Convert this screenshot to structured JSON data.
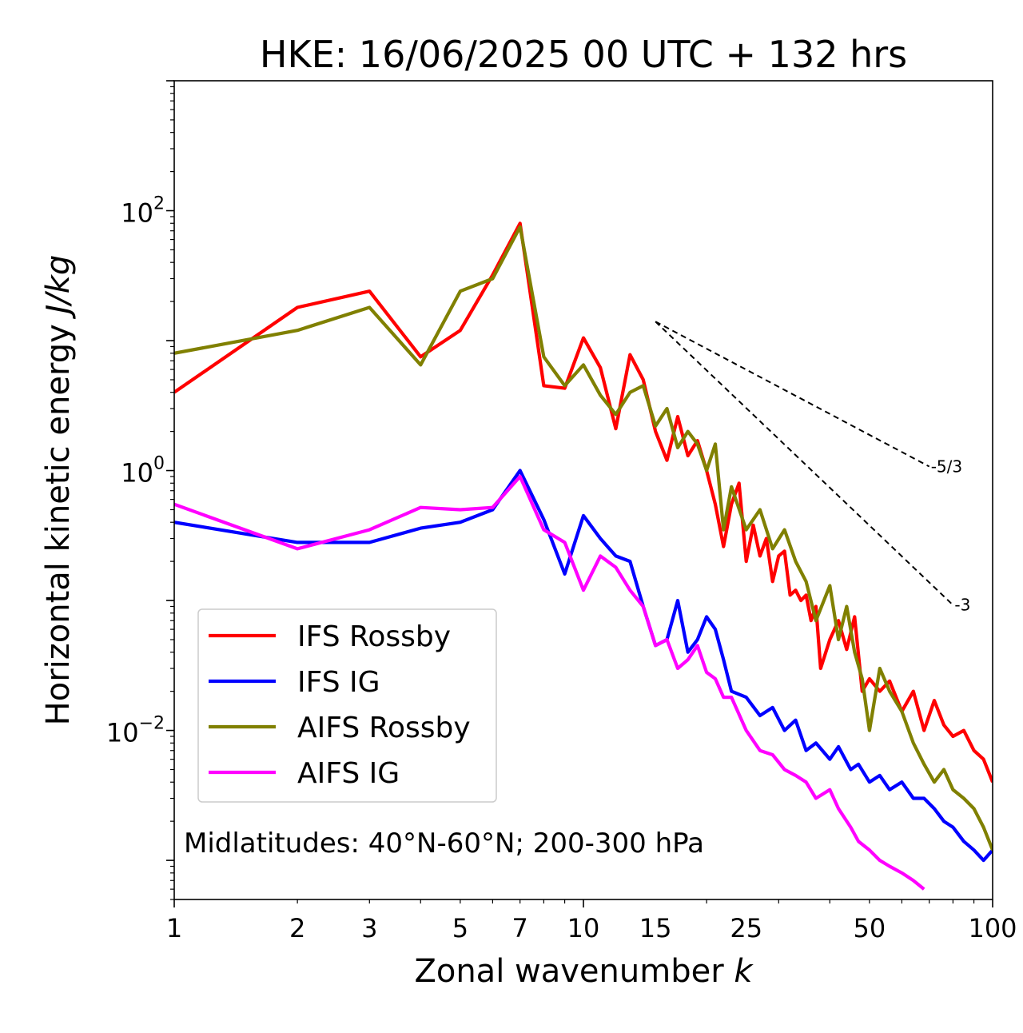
{
  "chart_data": {
    "type": "line",
    "title": "HKE: 16/06/2025 00 UTC + 132 hrs",
    "xlabel": "Zonal wavenumber",
    "xlabel_italic": "k",
    "ylabel": "Horizontal kinetic energy",
    "ylabel_italic": "J/kg",
    "xscale": "log",
    "yscale": "log",
    "xlim": [
      1,
      100
    ],
    "ylim": [
      0.0005,
      1000
    ],
    "x_ticks": [
      {
        "value": 1,
        "label": "1"
      },
      {
        "value": 2,
        "label": "2"
      },
      {
        "value": 3,
        "label": "3"
      },
      {
        "value": 5,
        "label": "5"
      },
      {
        "value": 7,
        "label": "7"
      },
      {
        "value": 10,
        "label": "10"
      },
      {
        "value": 15,
        "label": "15"
      },
      {
        "value": 25,
        "label": "25"
      },
      {
        "value": 50,
        "label": "50"
      },
      {
        "value": 100,
        "label": "100"
      }
    ],
    "y_ticks": [
      {
        "value": 100,
        "base": "10",
        "exp": "2"
      },
      {
        "value": 1,
        "base": "10",
        "exp": "0"
      },
      {
        "value": 0.01,
        "base": "10",
        "exp": "−2"
      }
    ],
    "grid": false,
    "legend": "lower-left",
    "annotation": "Midlatitudes: 40°N-60°N; 200-300 hPa",
    "reference_lines": [
      {
        "label": "-5/3",
        "slope": -1.6667,
        "x": [
          15,
          70
        ],
        "y_start": 14
      },
      {
        "label": "-3",
        "slope": -3,
        "x": [
          15,
          80
        ],
        "y_start": 14
      }
    ],
    "series": [
      {
        "name": "IFS Rossby",
        "color": "#ff0000",
        "points": [
          [
            1,
            4.0
          ],
          [
            2,
            18
          ],
          [
            3,
            24
          ],
          [
            4,
            7.5
          ],
          [
            5,
            12
          ],
          [
            6,
            32
          ],
          [
            7,
            80
          ],
          [
            8,
            4.5
          ],
          [
            9,
            4.3
          ],
          [
            10,
            10.5
          ],
          [
            11,
            6.2
          ],
          [
            12,
            2.1
          ],
          [
            13,
            7.8
          ],
          [
            14,
            5.0
          ],
          [
            15,
            2.0
          ],
          [
            16,
            1.2
          ],
          [
            17,
            2.6
          ],
          [
            18,
            1.3
          ],
          [
            19,
            1.7
          ],
          [
            20,
            1.0
          ],
          [
            21,
            0.55
          ],
          [
            22,
            0.26
          ],
          [
            23,
            0.55
          ],
          [
            24,
            0.8
          ],
          [
            25,
            0.2
          ],
          [
            26,
            0.38
          ],
          [
            27,
            0.22
          ],
          [
            28,
            0.3
          ],
          [
            29,
            0.14
          ],
          [
            30,
            0.22
          ],
          [
            31,
            0.24
          ],
          [
            32,
            0.11
          ],
          [
            33,
            0.12
          ],
          [
            34,
            0.1
          ],
          [
            35,
            0.11
          ],
          [
            36,
            0.07
          ],
          [
            37,
            0.09
          ],
          [
            38,
            0.03
          ],
          [
            40,
            0.05
          ],
          [
            42,
            0.07
          ],
          [
            44,
            0.042
          ],
          [
            46,
            0.075
          ],
          [
            48,
            0.02
          ],
          [
            50,
            0.025
          ],
          [
            53,
            0.02
          ],
          [
            56,
            0.024
          ],
          [
            60,
            0.014
          ],
          [
            64,
            0.02
          ],
          [
            68,
            0.01
          ],
          [
            72,
            0.017
          ],
          [
            76,
            0.011
          ],
          [
            80,
            0.009
          ],
          [
            85,
            0.01
          ],
          [
            90,
            0.007
          ],
          [
            95,
            0.006
          ],
          [
            100,
            0.004
          ]
        ]
      },
      {
        "name": "IFS IG",
        "color": "#0000ff",
        "points": [
          [
            1,
            0.4
          ],
          [
            2,
            0.28
          ],
          [
            3,
            0.28
          ],
          [
            4,
            0.36
          ],
          [
            5,
            0.4
          ],
          [
            6,
            0.5
          ],
          [
            7,
            1.0
          ],
          [
            8,
            0.42
          ],
          [
            9,
            0.16
          ],
          [
            10,
            0.45
          ],
          [
            11,
            0.3
          ],
          [
            12,
            0.22
          ],
          [
            13,
            0.2
          ],
          [
            14,
            0.09
          ],
          [
            15,
            0.045
          ],
          [
            16,
            0.05
          ],
          [
            17,
            0.1
          ],
          [
            18,
            0.04
          ],
          [
            19,
            0.05
          ],
          [
            20,
            0.075
          ],
          [
            21,
            0.06
          ],
          [
            22,
            0.035
          ],
          [
            23,
            0.02
          ],
          [
            25,
            0.018
          ],
          [
            27,
            0.013
          ],
          [
            29,
            0.015
          ],
          [
            31,
            0.01
          ],
          [
            33,
            0.012
          ],
          [
            35,
            0.007
          ],
          [
            37,
            0.008
          ],
          [
            40,
            0.006
          ],
          [
            42,
            0.0075
          ],
          [
            45,
            0.005
          ],
          [
            47,
            0.0055
          ],
          [
            50,
            0.004
          ],
          [
            53,
            0.0045
          ],
          [
            56,
            0.0035
          ],
          [
            60,
            0.004
          ],
          [
            64,
            0.003
          ],
          [
            68,
            0.003
          ],
          [
            72,
            0.0025
          ],
          [
            76,
            0.002
          ],
          [
            80,
            0.0018
          ],
          [
            85,
            0.0014
          ],
          [
            90,
            0.0012
          ],
          [
            95,
            0.001
          ],
          [
            100,
            0.0012
          ]
        ]
      },
      {
        "name": "AIFS Rossby",
        "color": "#808000",
        "points": [
          [
            1,
            8.0
          ],
          [
            2,
            12
          ],
          [
            3,
            18
          ],
          [
            4,
            6.5
          ],
          [
            5,
            24
          ],
          [
            6,
            30
          ],
          [
            7,
            75
          ],
          [
            8,
            7.5
          ],
          [
            9,
            4.5
          ],
          [
            10,
            6.5
          ],
          [
            11,
            3.8
          ],
          [
            12,
            2.7
          ],
          [
            13,
            4.0
          ],
          [
            14,
            4.5
          ],
          [
            15,
            2.2
          ],
          [
            16,
            3.0
          ],
          [
            17,
            1.5
          ],
          [
            18,
            2.0
          ],
          [
            19,
            1.6
          ],
          [
            20,
            1.0
          ],
          [
            21,
            1.6
          ],
          [
            22,
            0.35
          ],
          [
            23,
            0.75
          ],
          [
            25,
            0.35
          ],
          [
            27,
            0.5
          ],
          [
            29,
            0.25
          ],
          [
            31,
            0.35
          ],
          [
            33,
            0.2
          ],
          [
            35,
            0.14
          ],
          [
            37,
            0.07
          ],
          [
            40,
            0.13
          ],
          [
            42,
            0.05
          ],
          [
            44,
            0.09
          ],
          [
            46,
            0.04
          ],
          [
            48,
            0.025
          ],
          [
            50,
            0.01
          ],
          [
            53,
            0.03
          ],
          [
            56,
            0.02
          ],
          [
            60,
            0.014
          ],
          [
            64,
            0.008
          ],
          [
            68,
            0.0055
          ],
          [
            72,
            0.004
          ],
          [
            76,
            0.005
          ],
          [
            80,
            0.0035
          ],
          [
            85,
            0.003
          ],
          [
            90,
            0.0025
          ],
          [
            95,
            0.0018
          ],
          [
            100,
            0.0012
          ]
        ]
      },
      {
        "name": "AIFS IG",
        "color": "#ff00ff",
        "points": [
          [
            1,
            0.55
          ],
          [
            2,
            0.25
          ],
          [
            3,
            0.35
          ],
          [
            4,
            0.52
          ],
          [
            5,
            0.5
          ],
          [
            6,
            0.52
          ],
          [
            7,
            0.9
          ],
          [
            8,
            0.35
          ],
          [
            9,
            0.28
          ],
          [
            10,
            0.12
          ],
          [
            11,
            0.22
          ],
          [
            12,
            0.18
          ],
          [
            13,
            0.12
          ],
          [
            14,
            0.09
          ],
          [
            15,
            0.045
          ],
          [
            16,
            0.05
          ],
          [
            17,
            0.03
          ],
          [
            18,
            0.035
          ],
          [
            19,
            0.045
          ],
          [
            20,
            0.028
          ],
          [
            21,
            0.025
          ],
          [
            22,
            0.018
          ],
          [
            23,
            0.018
          ],
          [
            25,
            0.01
          ],
          [
            27,
            0.007
          ],
          [
            29,
            0.0065
          ],
          [
            31,
            0.005
          ],
          [
            33,
            0.0045
          ],
          [
            35,
            0.004
          ],
          [
            37,
            0.003
          ],
          [
            40,
            0.0035
          ],
          [
            42,
            0.0025
          ],
          [
            45,
            0.0018
          ],
          [
            47,
            0.0014
          ],
          [
            50,
            0.0012
          ],
          [
            53,
            0.001
          ],
          [
            56,
            0.0009
          ],
          [
            60,
            0.0008
          ],
          [
            64,
            0.0007
          ],
          [
            68,
            0.0006
          ]
        ]
      }
    ]
  }
}
